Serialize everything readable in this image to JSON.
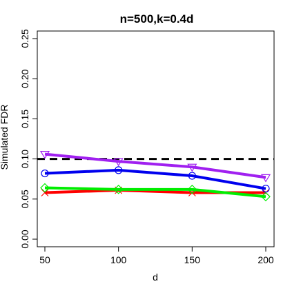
{
  "chart_data": {
    "type": "line",
    "title": "n=500,k=0.4d",
    "xlabel": "d",
    "ylabel": "Simulated FDR",
    "x": [
      50,
      100,
      150,
      200
    ],
    "xlim": [
      50,
      200
    ],
    "ylim": [
      0,
      0.25
    ],
    "x_ticks": [
      "50",
      "100",
      "150",
      "200"
    ],
    "y_ticks": [
      "0.00",
      "0.05",
      "0.10",
      "0.15",
      "0.20",
      "0.25"
    ],
    "y_tick_values": [
      0,
      0.05,
      0.1,
      0.15,
      0.2,
      0.25
    ],
    "reference_line": {
      "y": 0.1,
      "style": "dashed",
      "color": "#000000"
    },
    "grid": false,
    "series": [
      {
        "color": "#ff0000",
        "marker": "x",
        "values": [
          0.058,
          0.061,
          0.058,
          0.058
        ]
      },
      {
        "color": "#00ee00",
        "marker": "diamond",
        "values": [
          0.064,
          0.062,
          0.062,
          0.053
        ]
      },
      {
        "color": "#0000ee",
        "marker": "circle",
        "values": [
          0.082,
          0.086,
          0.079,
          0.063
        ]
      },
      {
        "color": "#a020f0",
        "marker": "triangle-down",
        "values": [
          0.106,
          0.097,
          0.09,
          0.077
        ]
      }
    ]
  }
}
